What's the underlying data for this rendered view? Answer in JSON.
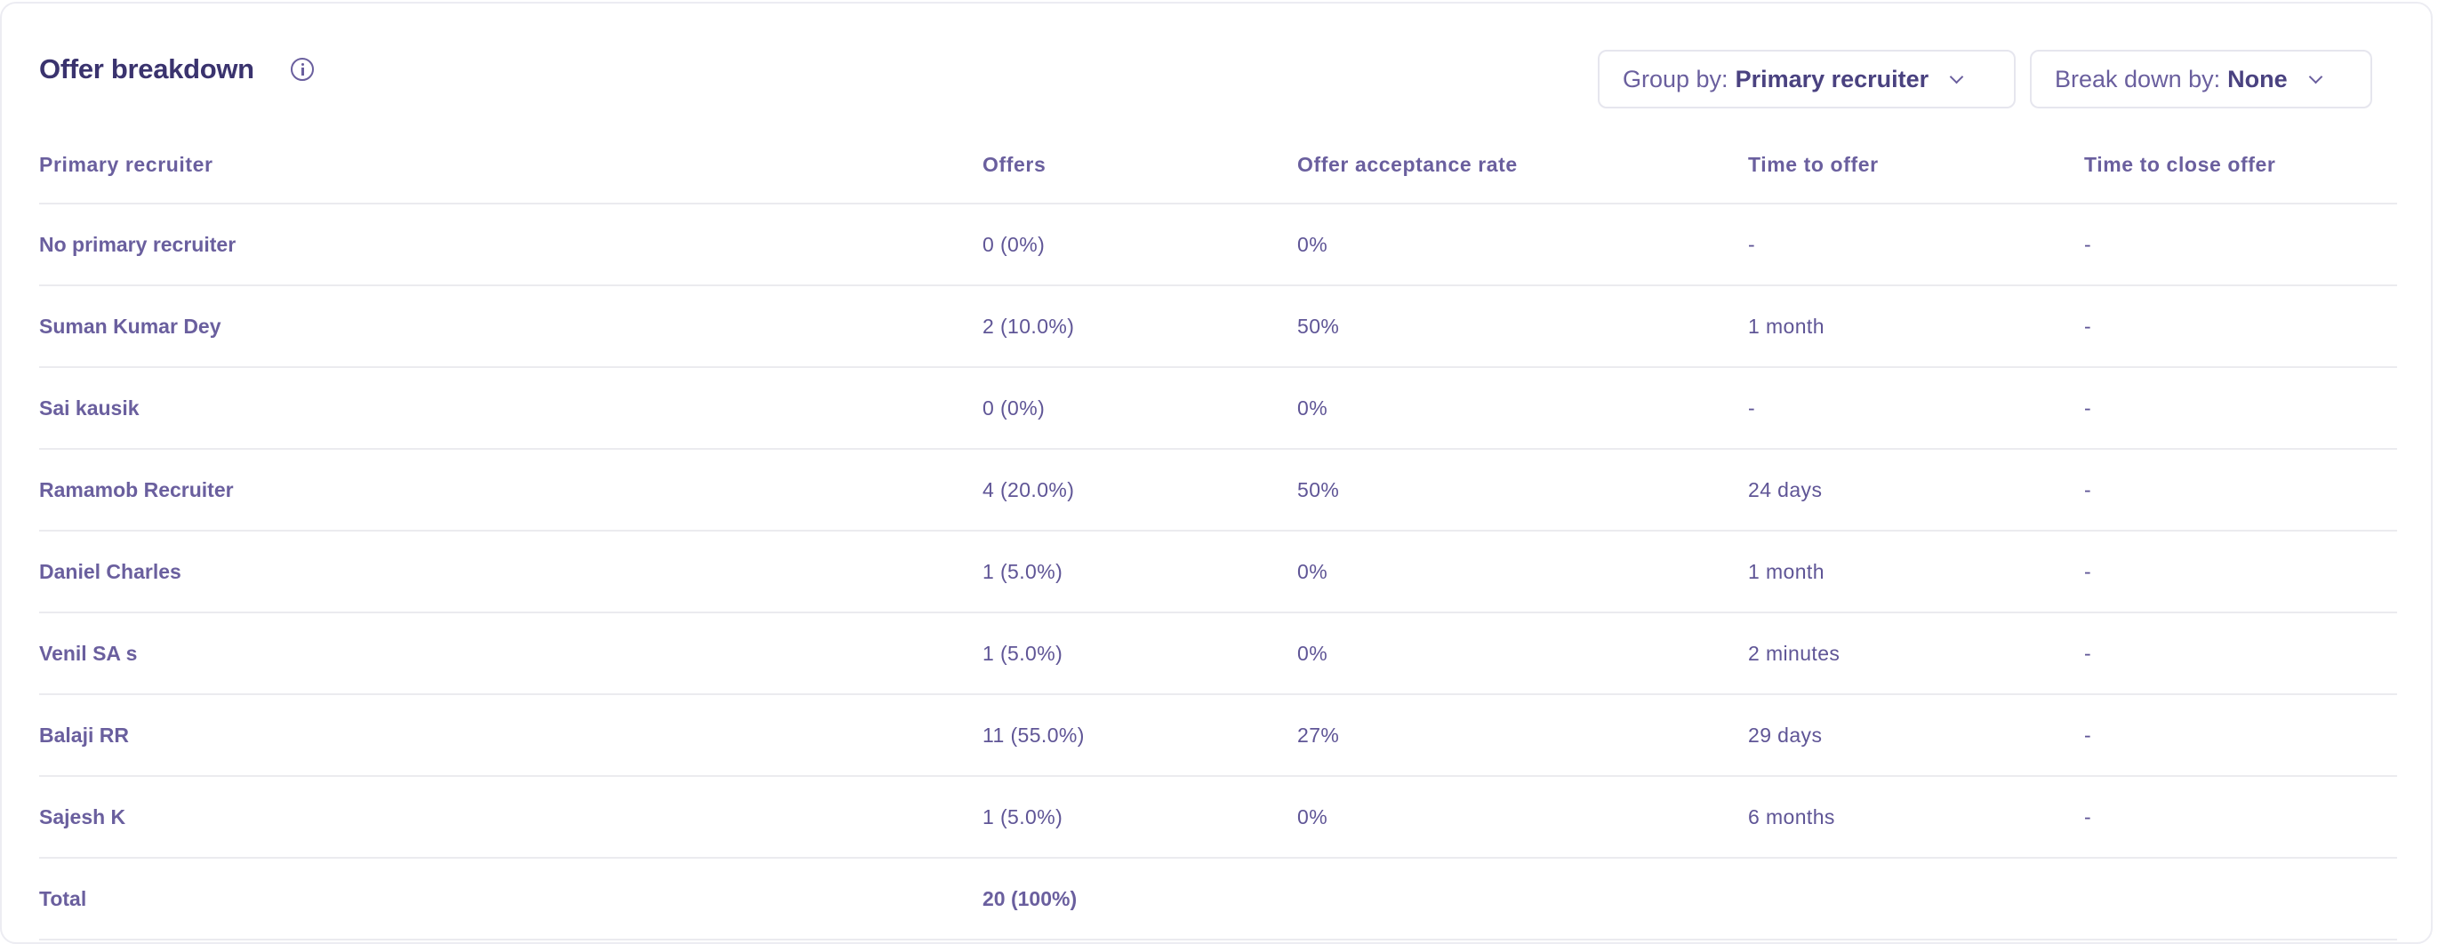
{
  "header": {
    "title": "Offer breakdown",
    "group_by": {
      "label": "Group by:",
      "value": "Primary recruiter"
    },
    "break_down_by": {
      "label": "Break down by:",
      "value": "None"
    }
  },
  "table": {
    "columns": [
      "Primary recruiter",
      "Offers",
      "Offer acceptance rate",
      "Time to offer",
      "Time to close offer"
    ],
    "rows": [
      [
        "No primary recruiter",
        "0 (0%)",
        "0%",
        "-",
        "-"
      ],
      [
        "Suman Kumar Dey",
        "2 (10.0%)",
        "50%",
        "1 month",
        "-"
      ],
      [
        "Sai kausik",
        "0 (0%)",
        "0%",
        "-",
        "-"
      ],
      [
        "Ramamob Recruiter",
        "4 (20.0%)",
        "50%",
        "24 days",
        "-"
      ],
      [
        "Daniel Charles",
        "1 (5.0%)",
        "0%",
        "1 month",
        "-"
      ],
      [
        "Venil SA s",
        "1 (5.0%)",
        "0%",
        "2 minutes",
        "-"
      ],
      [
        "Balaji RR",
        "11 (55.0%)",
        "27%",
        "29 days",
        "-"
      ],
      [
        "Sajesh K",
        "1 (5.0%)",
        "0%",
        "6 months",
        "-"
      ]
    ],
    "total": [
      "Total",
      "20 (100%)",
      "",
      "",
      ""
    ]
  }
}
